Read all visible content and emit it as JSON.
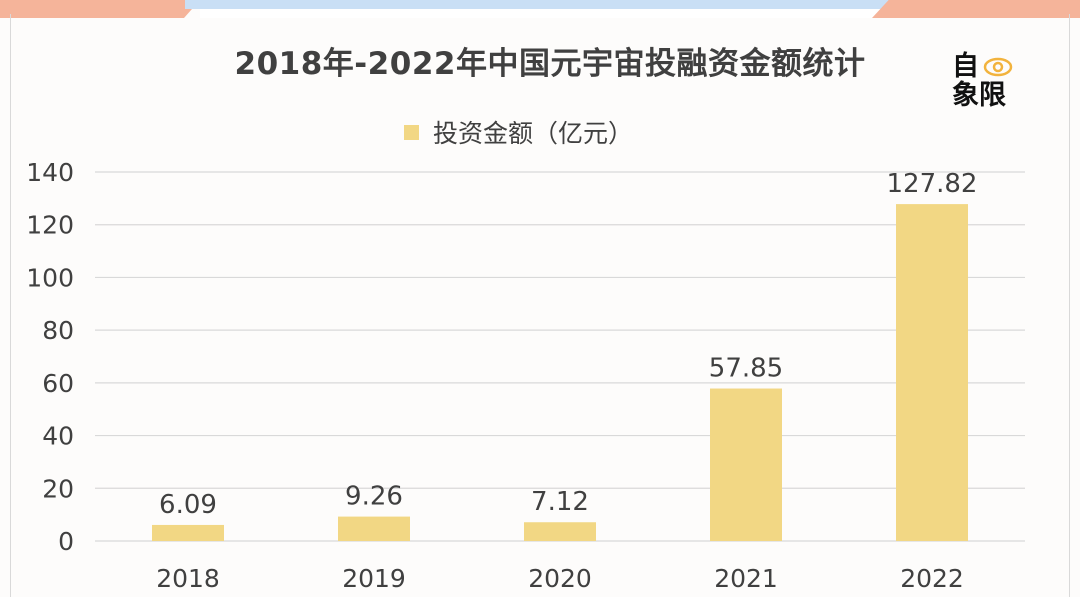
{
  "chart_data": {
    "type": "bar",
    "title": "2018年-2022年中国元宇宙投融资金额统计",
    "legend": [
      "投资金额（亿元）"
    ],
    "categories": [
      "2018",
      "2019",
      "2020",
      "2021",
      "2022"
    ],
    "series": [
      {
        "name": "投资金额（亿元）",
        "values": [
          6.09,
          9.26,
          7.12,
          57.85,
          127.82
        ]
      }
    ],
    "data_labels": [
      "6.09",
      "9.26",
      "7.12",
      "57.85",
      "127.82"
    ],
    "ylim": [
      0,
      140
    ],
    "yticks": [
      "0",
      "20",
      "40",
      "60",
      "80",
      "100",
      "120",
      "140"
    ],
    "grid": true,
    "legend_position": "top",
    "colors": {
      "bar": "#f2d784",
      "grid": "#d9d9d9",
      "text": "#404040"
    }
  },
  "logo": {
    "line1": "自",
    "line2": "象限",
    "icon": "eye-icon"
  }
}
